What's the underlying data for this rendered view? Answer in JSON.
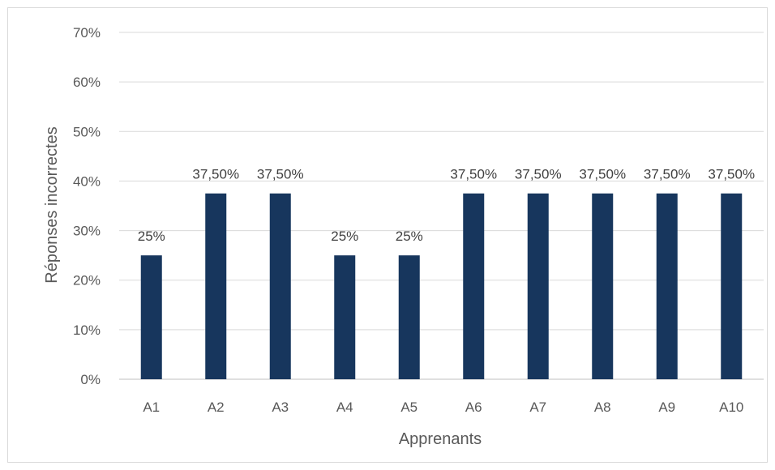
{
  "chart_data": {
    "type": "bar",
    "categories": [
      "A1",
      "A2",
      "A3",
      "A4",
      "A5",
      "A6",
      "A7",
      "A8",
      "A9",
      "A10"
    ],
    "values": [
      25,
      37.5,
      37.5,
      25,
      25,
      37.5,
      37.5,
      37.5,
      37.5,
      37.5
    ],
    "data_labels": [
      "25%",
      "37,50%",
      "37,50%",
      "25%",
      "25%",
      "37,50%",
      "37,50%",
      "37,50%",
      "37,50%",
      "37,50%"
    ],
    "y_ticks": [
      0,
      10,
      20,
      30,
      40,
      50,
      60,
      70
    ],
    "y_tick_labels": [
      "0%",
      "10%",
      "20%",
      "30%",
      "40%",
      "50%",
      "60%",
      "70%"
    ],
    "title": "",
    "xlabel": "Apprenants",
    "ylabel": "Réponses incorrectes",
    "ylim": [
      0,
      70
    ],
    "grid": true,
    "legend": "none",
    "colors": {
      "bar": "#17365d",
      "grid": "#d9d9d9",
      "axis": "#bfbfbf"
    }
  }
}
